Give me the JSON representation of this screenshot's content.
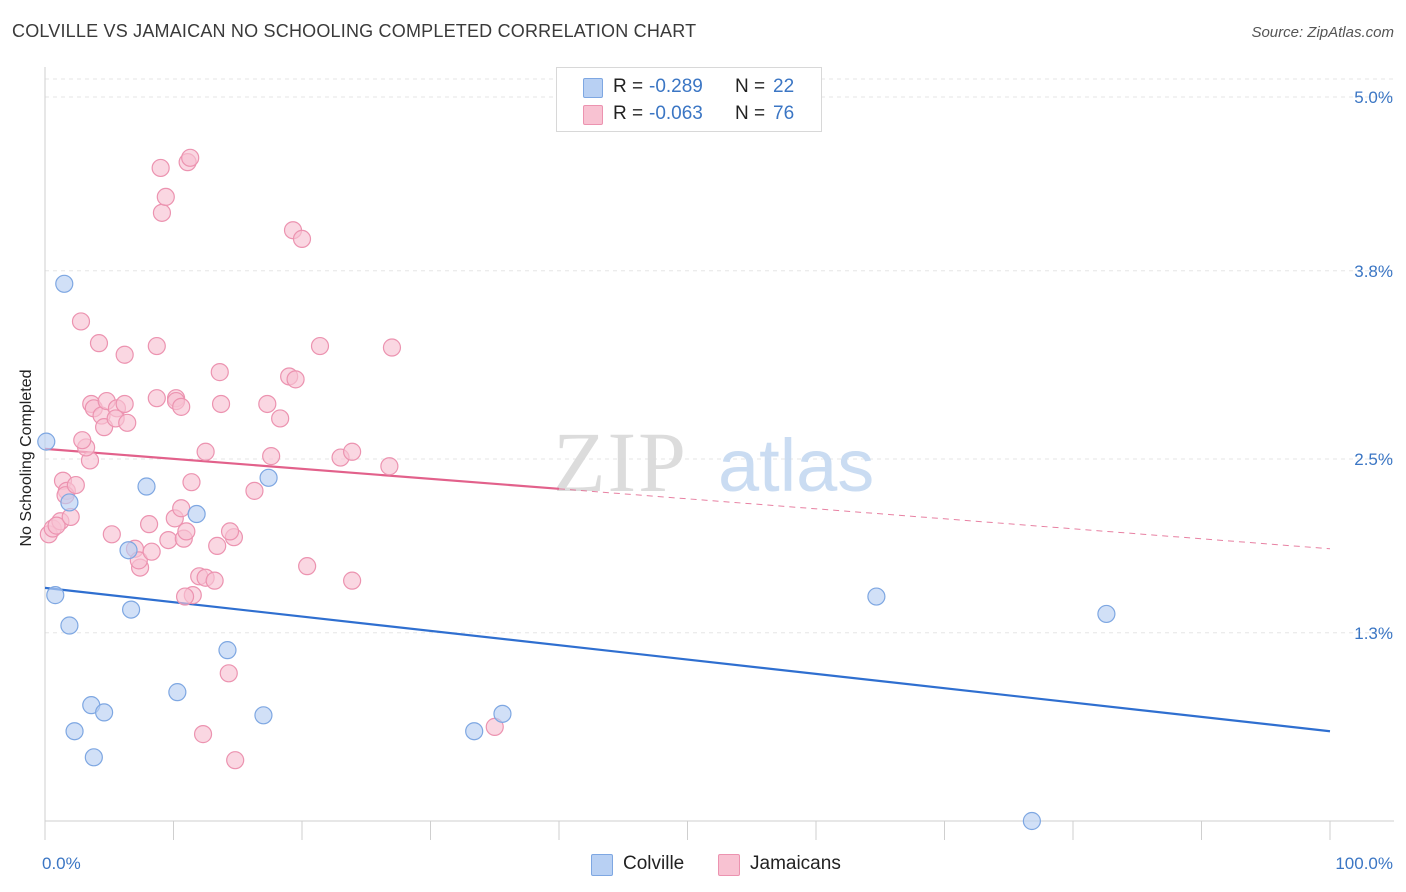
{
  "header": {
    "title": "COLVILLE VS JAMAICAN NO SCHOOLING COMPLETED CORRELATION CHART",
    "source": "Source: ZipAtlas.com"
  },
  "watermark": {
    "part1": "ZIP",
    "part2": "atlas"
  },
  "legend": {
    "rows": [
      {
        "r_label": "R =",
        "r_value": "-0.289",
        "n_label": "N =",
        "n_value": "22"
      },
      {
        "r_label": "R =",
        "r_value": "-0.063",
        "n_label": "N =",
        "n_value": "76"
      }
    ]
  },
  "bottom_legend": {
    "items": [
      {
        "label": "Colville"
      },
      {
        "label": "Jamaicans"
      }
    ]
  },
  "colors": {
    "colville_fill": "#b8d0f3",
    "colville_stroke": "#7ea7e2",
    "colville_line": "#2f6fd0",
    "jamaican_fill": "#f8c2d2",
    "jamaican_stroke": "#ec93b0",
    "jamaican_line": "#e2618b",
    "tick_label": "#3b76c4",
    "grid": "#e6e6e6"
  },
  "chart_data": {
    "type": "scatter",
    "title": "COLVILLE VS JAMAICAN NO SCHOOLING COMPLETED CORRELATION CHART",
    "xlabel": "",
    "ylabel": "No Schooling Completed",
    "xlim": [
      0,
      100
    ],
    "ylim": [
      0,
      5.2
    ],
    "x_tick_labels": [
      {
        "value": 0,
        "label": "0.0%"
      },
      {
        "value": 100,
        "label": "100.0%"
      }
    ],
    "y_tick_labels": [
      {
        "value": 1.3,
        "label": "1.3%"
      },
      {
        "value": 2.5,
        "label": "2.5%"
      },
      {
        "value": 3.8,
        "label": "3.8%"
      },
      {
        "value": 5.0,
        "label": "5.0%"
      }
    ],
    "grid": true,
    "legend_position": "top-center",
    "series": [
      {
        "name": "Colville",
        "points": [
          [
            0.1,
            2.62
          ],
          [
            1.5,
            3.71
          ],
          [
            0.8,
            1.56
          ],
          [
            1.9,
            2.2
          ],
          [
            1.9,
            1.35
          ],
          [
            3.6,
            0.8
          ],
          [
            2.3,
            0.62
          ],
          [
            4.6,
            0.75
          ],
          [
            3.8,
            0.44
          ],
          [
            6.5,
            1.87
          ],
          [
            6.7,
            1.46
          ],
          [
            7.9,
            2.31
          ],
          [
            10.3,
            0.89
          ],
          [
            11.8,
            2.12
          ],
          [
            14.2,
            1.18
          ],
          [
            17.0,
            0.73
          ],
          [
            17.4,
            2.37
          ],
          [
            33.4,
            0.62
          ],
          [
            35.6,
            0.74
          ],
          [
            64.7,
            1.55
          ],
          [
            82.6,
            1.43
          ],
          [
            76.8,
            0.0
          ]
        ],
        "trend": {
          "x0": 0,
          "y0": 1.61,
          "x1": 100,
          "y1": 0.62,
          "dashed_from_x": null
        }
      },
      {
        "name": "Jamaicans",
        "points": [
          [
            0.3,
            1.98
          ],
          [
            0.6,
            2.02
          ],
          [
            1.2,
            2.07
          ],
          [
            0.9,
            2.04
          ],
          [
            1.4,
            2.35
          ],
          [
            1.7,
            2.28
          ],
          [
            1.6,
            2.25
          ],
          [
            2.0,
            2.1
          ],
          [
            2.4,
            2.32
          ],
          [
            2.8,
            3.45
          ],
          [
            3.5,
            2.49
          ],
          [
            3.2,
            2.58
          ],
          [
            3.6,
            2.88
          ],
          [
            3.8,
            2.85
          ],
          [
            4.2,
            3.3
          ],
          [
            4.4,
            2.8
          ],
          [
            4.8,
            2.9
          ],
          [
            4.6,
            2.72
          ],
          [
            5.2,
            1.98
          ],
          [
            5.6,
            2.85
          ],
          [
            5.5,
            2.78
          ],
          [
            6.2,
            2.88
          ],
          [
            6.4,
            2.75
          ],
          [
            6.2,
            3.22
          ],
          [
            7.0,
            1.88
          ],
          [
            7.4,
            1.75
          ],
          [
            7.3,
            1.8
          ],
          [
            8.1,
            2.05
          ],
          [
            8.3,
            1.86
          ],
          [
            8.7,
            2.92
          ],
          [
            8.7,
            3.28
          ],
          [
            9.0,
            4.51
          ],
          [
            9.1,
            4.2
          ],
          [
            9.4,
            4.31
          ],
          [
            9.6,
            1.94
          ],
          [
            10.1,
            2.09
          ],
          [
            10.2,
            2.92
          ],
          [
            10.2,
            2.9
          ],
          [
            10.6,
            2.16
          ],
          [
            10.8,
            1.95
          ],
          [
            11.1,
            4.55
          ],
          [
            11.3,
            4.58
          ],
          [
            11.0,
            2.0
          ],
          [
            11.4,
            2.34
          ],
          [
            11.5,
            1.56
          ],
          [
            12.0,
            1.69
          ],
          [
            12.5,
            1.68
          ],
          [
            12.5,
            2.55
          ],
          [
            12.3,
            0.6
          ],
          [
            13.2,
            1.66
          ],
          [
            13.4,
            1.9
          ],
          [
            13.6,
            3.1
          ],
          [
            13.7,
            2.88
          ],
          [
            14.7,
            1.96
          ],
          [
            14.3,
            1.02
          ],
          [
            14.4,
            2.0
          ],
          [
            14.8,
            0.42
          ],
          [
            16.3,
            2.28
          ],
          [
            17.3,
            2.88
          ],
          [
            17.6,
            2.52
          ],
          [
            18.3,
            2.78
          ],
          [
            19.0,
            3.07
          ],
          [
            19.5,
            3.05
          ],
          [
            19.3,
            4.08
          ],
          [
            20.0,
            4.02
          ],
          [
            20.4,
            1.76
          ],
          [
            21.4,
            3.28
          ],
          [
            23.0,
            2.51
          ],
          [
            23.9,
            2.55
          ],
          [
            23.9,
            1.66
          ],
          [
            26.8,
            2.45
          ],
          [
            27.0,
            3.27
          ],
          [
            35.0,
            0.65
          ],
          [
            10.9,
            1.55
          ],
          [
            10.6,
            2.86
          ],
          [
            2.9,
            2.63
          ]
        ],
        "trend": {
          "x0": 0,
          "y0": 2.57,
          "x1": 100,
          "y1": 1.88,
          "dashed_from_x": 40
        }
      }
    ]
  }
}
